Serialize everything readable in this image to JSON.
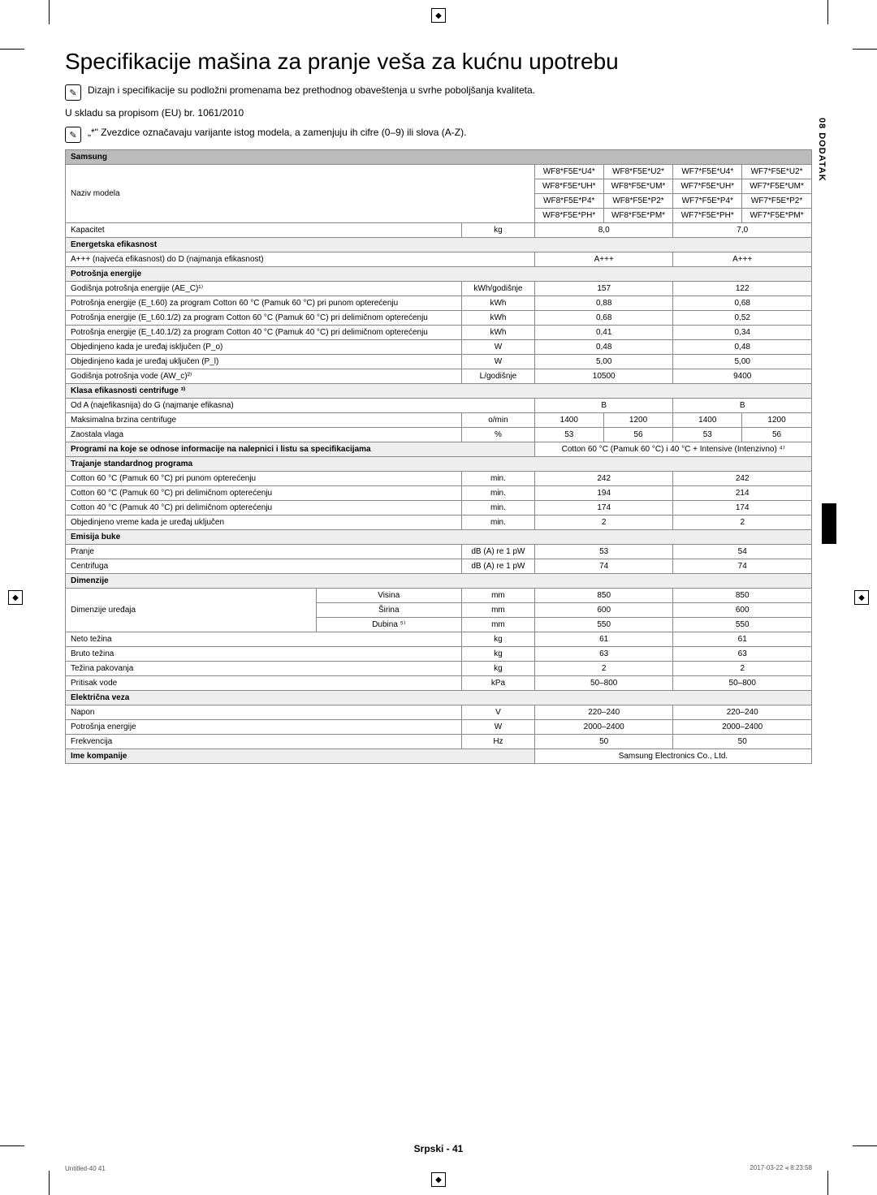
{
  "title": "Specifikacije mašina za pranje veša za kućnu upotrebu",
  "note1": "Dizajn i specifikacije su podložni promenama bez prethodnog obaveštenja u svrhe poboljšanja kvaliteta.",
  "subline": "U skladu sa propisom (EU) br. 1061/2010",
  "note2": "„*\" Zvezdice označavaju varijante istog modela, a zamenjuju ih cifre (0–9) ili slova (A-Z).",
  "side_label": "08  DODATAK",
  "footer": "Srpski - 41",
  "tiny_left": "Untitled-40   41",
  "tiny_right": "2017-03-22   ⫷ 8:23:58",
  "headers": {
    "samsung": "Samsung",
    "naziv": "Naziv modela",
    "models": [
      [
        "WF8*F5E*U4*",
        "WF8*F5E*U2*",
        "WF7*F5E*U4*",
        "WF7*F5E*U2*"
      ],
      [
        "WF8*F5E*UH*",
        "WF8*F5E*UM*",
        "WF7*F5E*UH*",
        "WF7*F5E*UM*"
      ],
      [
        "WF8*F5E*P4*",
        "WF8*F5E*P2*",
        "WF7*F5E*P4*",
        "WF7*F5E*P2*"
      ],
      [
        "WF8*F5E*PH*",
        "WF8*F5E*PM*",
        "WF7*F5E*PH*",
        "WF7*F5E*PM*"
      ]
    ]
  },
  "rows": {
    "kapacitet": {
      "label": "Kapacitet",
      "unit": "kg",
      "v1": "8,0",
      "v2": "7,0"
    },
    "energ_eff": "Energetska efikasnost",
    "appp": {
      "label": "A+++ (najveća efikasnost) do D (najmanja efikasnost)",
      "v1": "A+++",
      "v2": "A+++"
    },
    "potrosnja_e": "Potrošnja energije",
    "god_pot": {
      "label": "Godišnja potrošnja energije (AE_C)¹⁾",
      "unit": "kWh/godišnje",
      "v1": "157",
      "v2": "122"
    },
    "et60": {
      "label": "Potrošnja energije (E_t.60) za program Cotton 60 °C (Pamuk 60 °C) pri punom opterećenju",
      "unit": "kWh",
      "v1": "0,88",
      "v2": "0,68"
    },
    "et6012": {
      "label": "Potrošnja energije (E_t.60.1/2) za program Cotton 60 °C (Pamuk 60 °C) pri delimičnom opterećenju",
      "unit": "kWh",
      "v1": "0,68",
      "v2": "0,52"
    },
    "et4012": {
      "label": "Potrošnja energije (E_t.40.1/2) za program Cotton 40 °C (Pamuk 40 °C) pri delimičnom opterećenju",
      "unit": "kWh",
      "v1": "0,41",
      "v2": "0,34"
    },
    "po": {
      "label": "Objedinjeno kada je uređaj isključen (P_o)",
      "unit": "W",
      "v1": "0,48",
      "v2": "0,48"
    },
    "pl": {
      "label": "Objedinjeno kada je uređaj uključen (P_l)",
      "unit": "W",
      "v1": "5,00",
      "v2": "5,00"
    },
    "awc": {
      "label": "Godišnja potrošnja vode (AW_c)²⁾",
      "unit": "L/godišnje",
      "v1": "10500",
      "v2": "9400"
    },
    "klasa": "Klasa efikasnosti centrifuge ³⁾",
    "odag": {
      "label": "Od A (najefikasnija) do G (najmanje efikasna)",
      "v1": "B",
      "v2": "B"
    },
    "maxbrz": {
      "label": "Maksimalna brzina centrifuge",
      "unit": "o/min",
      "v": [
        "1400",
        "1200",
        "1400",
        "1200"
      ]
    },
    "zaost": {
      "label": "Zaostala vlaga",
      "unit": "%",
      "v": [
        "53",
        "56",
        "53",
        "56"
      ]
    },
    "programi": {
      "label": "Programi na koje se odnose informacije na nalepnici i listu sa specifikacijama",
      "value": "Cotton 60 °C (Pamuk 60 °C) i 40 °C + Intensive (Intenzivno) ⁴⁾"
    },
    "trajanje": "Trajanje standardnog programa",
    "c60p": {
      "label": "Cotton 60 °C (Pamuk 60 °C) pri punom opterećenju",
      "unit": "min.",
      "v1": "242",
      "v2": "242"
    },
    "c60d": {
      "label": "Cotton 60 °C (Pamuk 60 °C) pri delimičnom opterećenju",
      "unit": "min.",
      "v1": "194",
      "v2": "214"
    },
    "c40d": {
      "label": "Cotton 40 °C (Pamuk 40 °C) pri delimičnom opterećenju",
      "unit": "min.",
      "v1": "174",
      "v2": "174"
    },
    "objv": {
      "label": "Objedinjeno vreme kada je uređaj uključen",
      "unit": "min.",
      "v1": "2",
      "v2": "2"
    },
    "emisija": "Emisija buke",
    "pranje": {
      "label": "Pranje",
      "unit": "dB (A) re 1 pW",
      "v1": "53",
      "v2": "54"
    },
    "centrifuga": {
      "label": "Centrifuga",
      "unit": "dB (A) re 1 pW",
      "v1": "74",
      "v2": "74"
    },
    "dimenzije": "Dimenzije",
    "dim_label": "Dimenzije uređaja",
    "visina": {
      "label": "Visina",
      "unit": "mm",
      "v1": "850",
      "v2": "850"
    },
    "sirina": {
      "label": "Širina",
      "unit": "mm",
      "v1": "600",
      "v2": "600"
    },
    "dubina": {
      "label": "Dubina ⁵⁾",
      "unit": "mm",
      "v1": "550",
      "v2": "550"
    },
    "neto": {
      "label": "Neto težina",
      "unit": "kg",
      "v1": "61",
      "v2": "61"
    },
    "bruto": {
      "label": "Bruto težina",
      "unit": "kg",
      "v1": "63",
      "v2": "63"
    },
    "pak": {
      "label": "Težina pakovanja",
      "unit": "kg",
      "v1": "2",
      "v2": "2"
    },
    "pritisak": {
      "label": "Pritisak vode",
      "unit": "kPa",
      "v1": "50–800",
      "v2": "50–800"
    },
    "elveza": "Električna veza",
    "napon": {
      "label": "Napon",
      "unit": "V",
      "v1": "220–240",
      "v2": "220–240"
    },
    "pote": {
      "label": "Potrošnja energije",
      "unit": "W",
      "v1": "2000–2400",
      "v2": "2000–2400"
    },
    "frekv": {
      "label": "Frekvencija",
      "unit": "Hz",
      "v1": "50",
      "v2": "50"
    },
    "ime": {
      "label": "Ime kompanije",
      "value": "Samsung Electronics Co., Ltd."
    }
  }
}
